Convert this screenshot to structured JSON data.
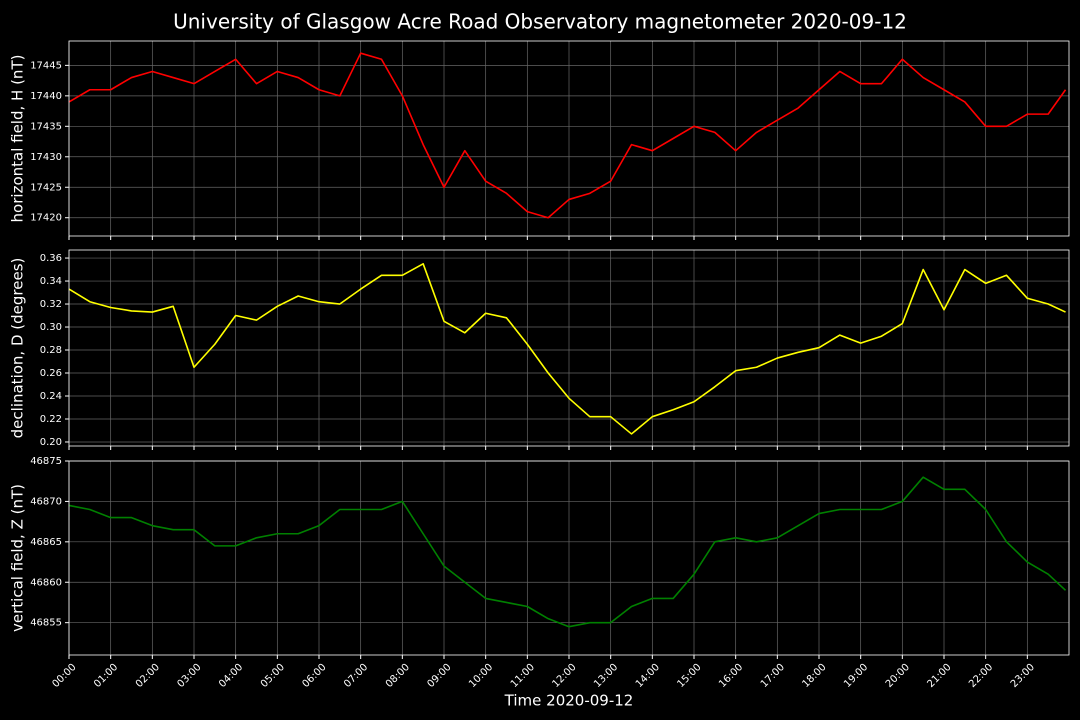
{
  "chart_data": [
    {
      "type": "line",
      "title": "University of Glasgow Acre Road Observatory magnetometer 2020-09-12",
      "ylabel": "horizontal field, H (nT)",
      "color": "#ff0000",
      "grid": true,
      "x": [
        "00:00",
        "00:30",
        "01:00",
        "01:30",
        "02:00",
        "02:30",
        "03:00",
        "03:30",
        "04:00",
        "04:30",
        "05:00",
        "05:30",
        "06:00",
        "06:30",
        "07:00",
        "07:30",
        "08:00",
        "08:30",
        "09:00",
        "09:30",
        "10:00",
        "10:30",
        "11:00",
        "11:30",
        "12:00",
        "12:30",
        "13:00",
        "13:30",
        "14:00",
        "14:30",
        "15:00",
        "15:30",
        "16:00",
        "16:30",
        "17:00",
        "17:30",
        "18:00",
        "18:30",
        "19:00",
        "19:30",
        "20:00",
        "20:30",
        "21:00",
        "21:30",
        "22:00",
        "22:30",
        "23:00",
        "23:30",
        "23:55"
      ],
      "values": [
        17439,
        17441,
        17441,
        17443,
        17444,
        17443,
        17442,
        17444,
        17446,
        17442,
        17444,
        17443,
        17441,
        17440,
        17447,
        17446,
        17440,
        17432,
        17425,
        17431,
        17426,
        17424,
        17421,
        17420,
        17423,
        17424,
        17426,
        17432,
        17431,
        17433,
        17435,
        17434,
        17431,
        17434,
        17436,
        17438,
        17441,
        17444,
        17442,
        17442,
        17446,
        17443,
        17441,
        17439,
        17435,
        17435,
        17437,
        17437,
        17441
      ],
      "xlim": [
        "00:00",
        "24:00"
      ],
      "ylim": [
        17417,
        17449
      ],
      "yticks": [
        17420,
        17425,
        17430,
        17435,
        17440,
        17445
      ]
    },
    {
      "type": "line",
      "ylabel": "declination, D (degrees)",
      "color": "#ffff00",
      "grid": true,
      "x": [
        "00:00",
        "00:30",
        "01:00",
        "01:30",
        "02:00",
        "02:30",
        "03:00",
        "03:30",
        "04:00",
        "04:30",
        "05:00",
        "05:30",
        "06:00",
        "06:30",
        "07:00",
        "07:30",
        "08:00",
        "08:30",
        "09:00",
        "09:30",
        "10:00",
        "10:30",
        "11:00",
        "11:30",
        "12:00",
        "12:30",
        "13:00",
        "13:30",
        "14:00",
        "14:30",
        "15:00",
        "15:30",
        "16:00",
        "16:30",
        "17:00",
        "17:30",
        "18:00",
        "18:30",
        "19:00",
        "19:30",
        "20:00",
        "20:30",
        "21:00",
        "21:30",
        "22:00",
        "22:30",
        "23:00",
        "23:30",
        "23:55"
      ],
      "values": [
        0.333,
        0.322,
        0.317,
        0.314,
        0.313,
        0.318,
        0.265,
        0.285,
        0.31,
        0.306,
        0.318,
        0.327,
        0.322,
        0.32,
        0.333,
        0.345,
        0.345,
        0.355,
        0.305,
        0.295,
        0.312,
        0.308,
        0.285,
        0.26,
        0.238,
        0.222,
        0.222,
        0.207,
        0.222,
        0.228,
        0.235,
        0.248,
        0.262,
        0.265,
        0.273,
        0.278,
        0.282,
        0.293,
        0.286,
        0.292,
        0.303,
        0.35,
        0.315,
        0.35,
        0.338,
        0.345,
        0.325,
        0.32,
        0.313
      ],
      "xlim": [
        "00:00",
        "24:00"
      ],
      "ylim": [
        0.1965,
        0.367
      ],
      "yticks": [
        {
          "value": 0.2,
          "label": "0.20"
        },
        0.22,
        0.24,
        0.26,
        0.28,
        {
          "value": 0.3,
          "label": "0.30"
        },
        0.32,
        0.34,
        0.36
      ]
    },
    {
      "type": "line",
      "ylabel": "vertical field, Z (nT)",
      "xlabel": "Time 2020-09-12",
      "color": "#008000",
      "grid": true,
      "x": [
        "00:00",
        "00:30",
        "01:00",
        "01:30",
        "02:00",
        "02:30",
        "03:00",
        "03:30",
        "04:00",
        "04:30",
        "05:00",
        "05:30",
        "06:00",
        "06:30",
        "07:00",
        "07:30",
        "08:00",
        "08:30",
        "09:00",
        "09:30",
        "10:00",
        "10:30",
        "11:00",
        "11:30",
        "12:00",
        "12:30",
        "13:00",
        "13:30",
        "14:00",
        "14:30",
        "15:00",
        "15:30",
        "16:00",
        "16:30",
        "17:00",
        "17:30",
        "18:00",
        "18:30",
        "19:00",
        "19:30",
        "20:00",
        "20:30",
        "21:00",
        "21:30",
        "22:00",
        "22:30",
        "23:00",
        "23:30",
        "23:55"
      ],
      "values": [
        46869.5,
        46869,
        46868,
        46868,
        46867,
        46866.5,
        46866.5,
        46864.5,
        46864.5,
        46865.5,
        46866,
        46866,
        46867,
        46869,
        46869,
        46869,
        46870,
        46866,
        46862,
        46860,
        46858,
        46857.5,
        46857,
        46855.5,
        46854.5,
        46855,
        46855,
        46857,
        46858,
        46858,
        46861,
        46865,
        46865.5,
        46865,
        46865.5,
        46867,
        46868.5,
        46869,
        46869,
        46869,
        46870,
        46873,
        46871.5,
        46871.5,
        46869,
        46865,
        46862.5,
        46861,
        46859
      ],
      "xlim": [
        "00:00",
        "24:00"
      ],
      "ylim": [
        46851,
        46875
      ],
      "yticks": [
        46855,
        46860,
        46865,
        46870,
        46875
      ],
      "xticks": [
        "00:00",
        "01:00",
        "02:00",
        "03:00",
        "04:00",
        "05:00",
        "06:00",
        "07:00",
        "08:00",
        "09:00",
        "10:00",
        "11:00",
        "12:00",
        "13:00",
        "14:00",
        "15:00",
        "16:00",
        "17:00",
        "18:00",
        "19:00",
        "20:00",
        "21:00",
        "22:00",
        "23:00"
      ]
    }
  ]
}
